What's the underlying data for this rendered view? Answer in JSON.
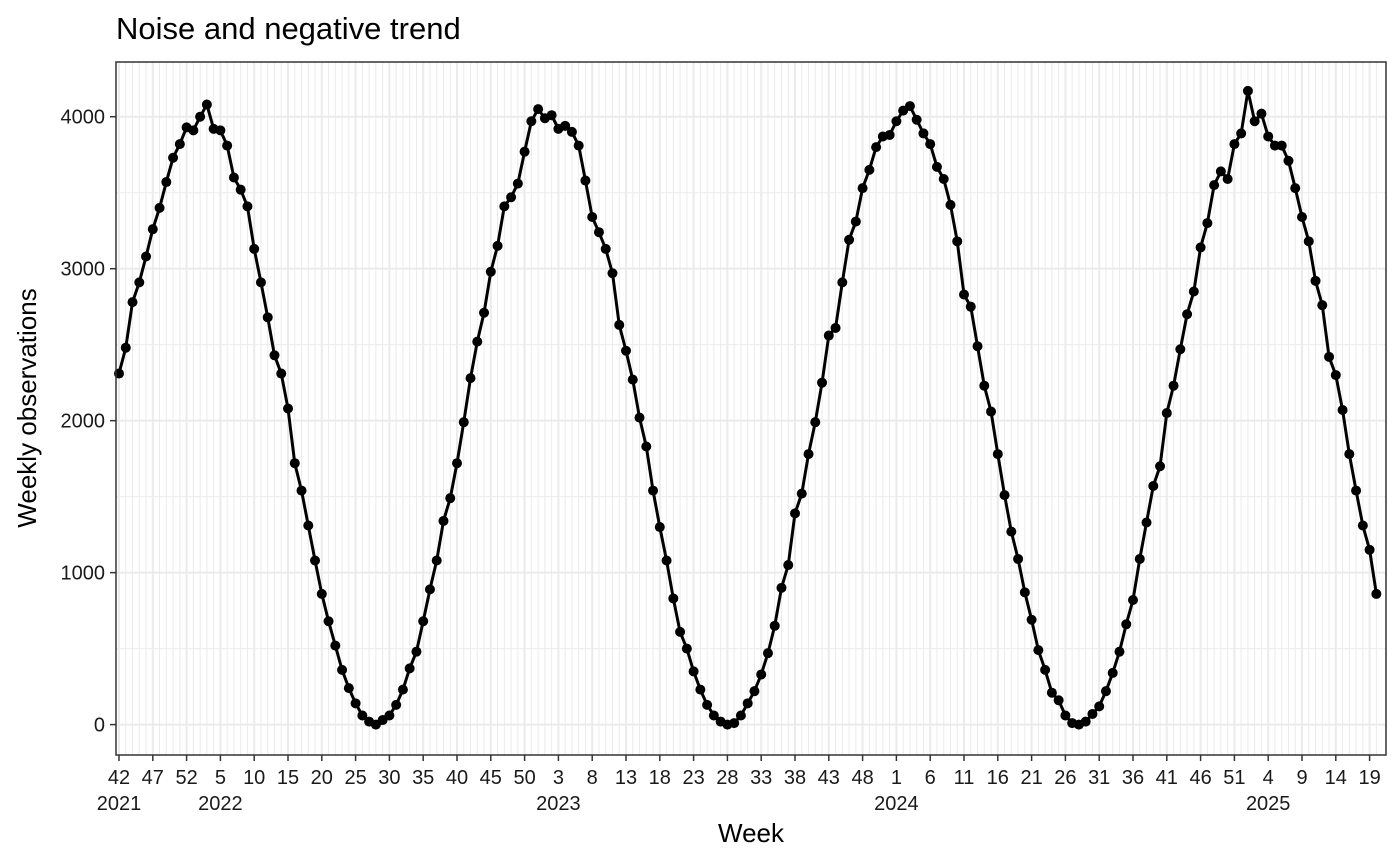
{
  "chart_data": {
    "type": "line",
    "title": "Noise and negative trend",
    "xlabel": "Week",
    "ylabel": "Weekly observations",
    "ylim": [
      -200,
      4360
    ],
    "y_ticks": [
      0,
      1000,
      2000,
      3000,
      4000
    ],
    "y_tick_labels": [
      "0",
      "1000",
      "2000",
      "3000",
      "4000"
    ],
    "x_ticks": [
      {
        "label": "42",
        "year": "2021"
      },
      {
        "label": "47"
      },
      {
        "label": "52"
      },
      {
        "label": "5",
        "year": "2022"
      },
      {
        "label": "10"
      },
      {
        "label": "15"
      },
      {
        "label": "20"
      },
      {
        "label": "25"
      },
      {
        "label": "30"
      },
      {
        "label": "35"
      },
      {
        "label": "40"
      },
      {
        "label": "45"
      },
      {
        "label": "50"
      },
      {
        "label": "3",
        "year": "2023"
      },
      {
        "label": "8"
      },
      {
        "label": "13"
      },
      {
        "label": "18"
      },
      {
        "label": "23"
      },
      {
        "label": "28"
      },
      {
        "label": "33"
      },
      {
        "label": "38"
      },
      {
        "label": "43"
      },
      {
        "label": "48"
      },
      {
        "label": "1",
        "year": "2024"
      },
      {
        "label": "6"
      },
      {
        "label": "11"
      },
      {
        "label": "16"
      },
      {
        "label": "21"
      },
      {
        "label": "26"
      },
      {
        "label": "31"
      },
      {
        "label": "36"
      },
      {
        "label": "41"
      },
      {
        "label": "46"
      },
      {
        "label": "51"
      },
      {
        "label": "4",
        "year": "2025"
      },
      {
        "label": "9"
      },
      {
        "label": "14"
      },
      {
        "label": "19"
      }
    ],
    "grid": true,
    "legend": "none",
    "line_color": "#000000",
    "point_color": "#000000",
    "grid_color": "#ebebeb",
    "series": [
      {
        "values": [
          2310,
          2480,
          2780,
          2910,
          3080,
          3260,
          3400,
          3570,
          3730,
          3820,
          3930,
          3910,
          4000,
          4080,
          3920,
          3910,
          3810,
          3600,
          3520,
          3410,
          3130,
          2910,
          2680,
          2430,
          2310,
          2080,
          1720,
          1540,
          1310,
          1080,
          860,
          680,
          520,
          360,
          240,
          140,
          60,
          20,
          0,
          30,
          60,
          130,
          230,
          370,
          480,
          680,
          890,
          1080,
          1340,
          1490,
          1720,
          1990,
          2280,
          2520,
          2710,
          2980,
          3150,
          3410,
          3470,
          3560,
          3770,
          3970,
          4050,
          3990,
          4010,
          3920,
          3940,
          3900,
          3810,
          3580,
          3340,
          3240,
          3130,
          2970,
          2630,
          2460,
          2270,
          2020,
          1830,
          1540,
          1300,
          1080,
          830,
          610,
          500,
          350,
          230,
          130,
          60,
          20,
          0,
          10,
          60,
          140,
          220,
          330,
          470,
          650,
          900,
          1050,
          1390,
          1520,
          1780,
          1990,
          2250,
          2560,
          2610,
          2910,
          3190,
          3310,
          3530,
          3650,
          3800,
          3870,
          3880,
          3970,
          4040,
          4070,
          3980,
          3890,
          3820,
          3670,
          3590,
          3420,
          3180,
          2830,
          2750,
          2490,
          2230,
          2060,
          1780,
          1510,
          1270,
          1090,
          870,
          690,
          490,
          360,
          210,
          160,
          60,
          10,
          0,
          20,
          70,
          120,
          220,
          340,
          480,
          660,
          820,
          1090,
          1330,
          1570,
          1700,
          2050,
          2230,
          2470,
          2700,
          2850,
          3140,
          3300,
          3550,
          3640,
          3590,
          3820,
          3890,
          4170,
          3970,
          4020,
          3870,
          3810,
          3810,
          3710,
          3530,
          3340,
          3180,
          2920,
          2760,
          2420,
          2300,
          2070,
          1780,
          1540,
          1310,
          1150,
          860
        ]
      }
    ]
  }
}
